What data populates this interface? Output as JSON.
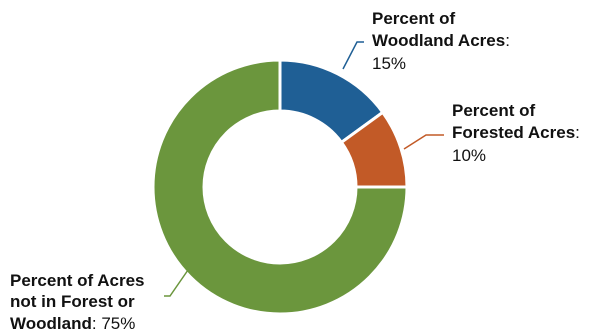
{
  "chart_data": {
    "type": "pie",
    "variant": "donut",
    "slices": [
      {
        "name": "Woodland",
        "value": 15,
        "value_label": "15%",
        "label_lines": [
          "Percent of",
          "Woodland Acres"
        ],
        "label_suffix": ":",
        "color": "#1f5f95",
        "leader_color": "#1f5f95"
      },
      {
        "name": "Forested",
        "value": 10,
        "value_label": "10%",
        "label_lines": [
          "Percent of",
          "Forested Acres"
        ],
        "label_suffix": ":",
        "color": "#c25a27",
        "leader_color": "#c25a27"
      },
      {
        "name": "Not in Forest or Woodland",
        "value": 75,
        "value_label": "75%",
        "label_lines": [
          "Percent of Acres",
          "not in Forest or",
          "Woodland"
        ],
        "label_suffix": ":",
        "color": "#6b963d",
        "leader_color": "#6b963d"
      }
    ],
    "start_angle_deg": 0,
    "direction": "clockwise",
    "legend": "none",
    "labels": "outside-with-leader-lines"
  }
}
